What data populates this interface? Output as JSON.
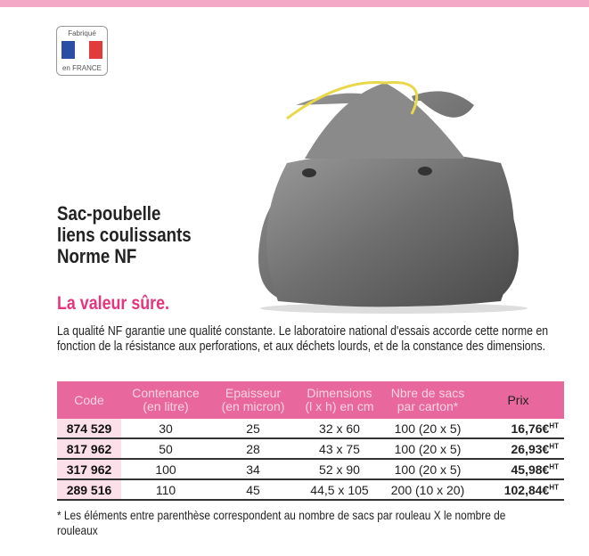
{
  "logo": {
    "top": "Fabriqué",
    "bottom": "en FRANCE"
  },
  "title": {
    "line1": "Sac-poubelle",
    "line2": "liens coulissants",
    "line3": "Norme NF"
  },
  "subtitle": "La valeur sûre.",
  "description": "La qualité NF garantie une qualité constante. Le laboratoire national d'essais accorde cette norme en fonction de la résistance aux perforations, et aux déchets lourds, et de la constance des dimensions.",
  "table": {
    "headers": [
      {
        "l1": "Code",
        "l2": ""
      },
      {
        "l1": "Contenance",
        "l2": "(en litre)"
      },
      {
        "l1": "Epaisseur",
        "l2": "(en micron)"
      },
      {
        "l1": "Dimensions",
        "l2": "(l x h) en cm"
      },
      {
        "l1": "Nbre de sacs",
        "l2": "par carton*"
      },
      {
        "l1": "Prix",
        "l2": ""
      }
    ],
    "rows": [
      {
        "code": "874 529",
        "contenance": "30",
        "epaisseur": "25",
        "dimensions": "32 x 60",
        "nbre": "100 (20 x 5)",
        "prix": "16,76€",
        "suffix": "HT"
      },
      {
        "code": "817 962",
        "contenance": "50",
        "epaisseur": "28",
        "dimensions": "43 x 75",
        "nbre": "100 (20 x 5)",
        "prix": "26,93€",
        "suffix": "HT"
      },
      {
        "code": "317 962",
        "contenance": "100",
        "epaisseur": "34",
        "dimensions": "52 x 90",
        "nbre": "100 (20 x 5)",
        "prix": "45,98€",
        "suffix": "HT"
      },
      {
        "code": "289 516",
        "contenance": "110",
        "epaisseur": "45",
        "dimensions": "44,5 x 105",
        "nbre": "200 (10 x 20)",
        "prix": "102,84€",
        "suffix": "HT"
      }
    ]
  },
  "footnote": "* Les éléments entre parenthèse correspondent au nombre de sacs par rouleau X le nombre de rouleaux",
  "colors": {
    "accent": "#e5357e",
    "header_bg": "#e8679c",
    "code_bg": "#fbe0ea"
  }
}
